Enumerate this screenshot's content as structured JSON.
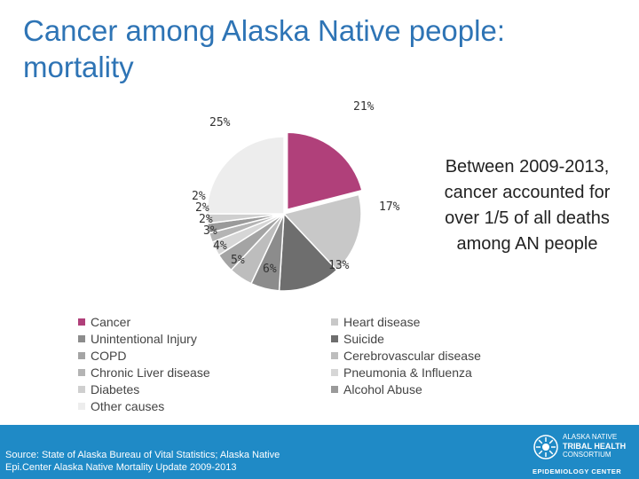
{
  "title": "Cancer among Alaska Native people: mortality",
  "annotation": "Between 2009-2013, cancer accounted for over 1/5 of all deaths among AN people",
  "chart_data": {
    "type": "pie",
    "slices": [
      {
        "name": "Cancer",
        "value": 21,
        "label": "21%",
        "color": "#B0407A"
      },
      {
        "name": "Heart disease",
        "value": 17,
        "label": "17%",
        "color": "#C8C8C8"
      },
      {
        "name": "Suicide",
        "value": 13,
        "label": "13%",
        "color": "#6E6E6E"
      },
      {
        "name": "Unintentional Injury",
        "value": 6,
        "label": "6%",
        "color": "#8C8C8C"
      },
      {
        "name": "Cerebrovascular disease",
        "value": 5,
        "label": "5%",
        "color": "#BDBDBD"
      },
      {
        "name": "COPD",
        "value": 4,
        "label": "4%",
        "color": "#A4A4A4"
      },
      {
        "name": "Pneumonia & Influenza",
        "value": 3,
        "label": "3%",
        "color": "#D6D6D6"
      },
      {
        "name": "Chronic Liver disease",
        "value": 2,
        "label": "2%",
        "color": "#B4B4B4"
      },
      {
        "name": "Alcohol Abuse",
        "value": 2,
        "label": "2%",
        "color": "#9A9A9A"
      },
      {
        "name": "Diabetes",
        "value": 2,
        "label": "2%",
        "color": "#CFCFCF"
      },
      {
        "name": "Other causes",
        "value": 25,
        "label": "25%",
        "color": "#EDEDED"
      }
    ],
    "exploded": "Cancer",
    "legend_left": [
      {
        "name": "Cancer",
        "color": "#B0407A"
      },
      {
        "name": "Unintentional Injury",
        "color": "#8C8C8C"
      },
      {
        "name": "COPD",
        "color": "#A4A4A4"
      },
      {
        "name": "Chronic Liver disease",
        "color": "#B4B4B4"
      },
      {
        "name": "Diabetes",
        "color": "#CFCFCF"
      },
      {
        "name": "Other causes",
        "color": "#EDEDED"
      }
    ],
    "legend_right": [
      {
        "name": "Heart disease",
        "color": "#C8C8C8"
      },
      {
        "name": "Suicide",
        "color": "#6E6E6E"
      },
      {
        "name": "Cerebrovascular disease",
        "color": "#BDBDBD"
      },
      {
        "name": "Pneumonia & Influenza",
        "color": "#D6D6D6"
      },
      {
        "name": "Alcohol Abuse",
        "color": "#9A9A9A"
      }
    ]
  },
  "footer": {
    "source_line1": "Source: State of Alaska Bureau of Vital Statistics; Alaska Native",
    "source_line2": "Epi.Center Alaska Native Mortality Update 2009-2013",
    "logo_line1": "ALASKA NATIVE",
    "logo_line2": "TRIBAL HEALTH",
    "logo_line3": "CONSORTIUM",
    "logo_line4": "EPIDEMIOLOGY CENTER"
  }
}
